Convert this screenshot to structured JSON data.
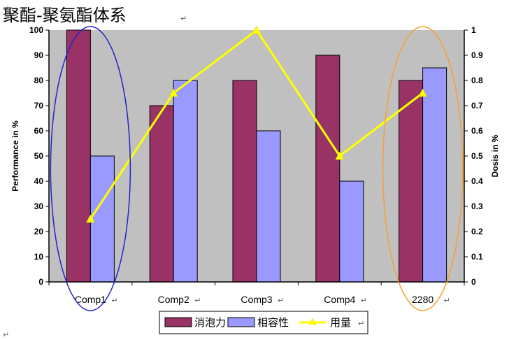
{
  "chart_data": {
    "type": "bar",
    "title": "聚酯-聚氨酯体系",
    "categories": [
      "Comp1",
      "Comp2",
      "Comp3",
      "Comp4",
      "2280"
    ],
    "series": [
      {
        "name": "消泡力",
        "kind": "bar",
        "axis": "left",
        "color": "#993366",
        "values": [
          100,
          70,
          80,
          90,
          80
        ]
      },
      {
        "name": "相容性",
        "kind": "bar",
        "axis": "left",
        "color": "#9999ff",
        "values": [
          50,
          80,
          60,
          40,
          85
        ]
      },
      {
        "name": "用量",
        "kind": "line",
        "axis": "right",
        "color": "#ffff00",
        "values": [
          0.25,
          0.75,
          1.0,
          0.5,
          0.75
        ]
      }
    ],
    "ylabel": "Performance in %",
    "y2label": "Dosis in %",
    "ylim": [
      0,
      100
    ],
    "y2lim": [
      0,
      1
    ],
    "yticks": [
      "0",
      "10",
      "20",
      "30",
      "40",
      "50",
      "60",
      "70",
      "80",
      "90",
      "100"
    ],
    "y2ticks": [
      "0",
      "0.1",
      "0.2",
      "0.3",
      "0.4",
      "0.5",
      "0.6",
      "0.7",
      "0.8",
      "0.9",
      "1"
    ],
    "plot_background": "#c0c0c0",
    "grid": false,
    "legend_position": "bottom",
    "highlight_ellipses": [
      {
        "category": "Comp1",
        "color": "#2222cc"
      },
      {
        "category": "2280",
        "color": "#f5a030"
      }
    ]
  },
  "paragraph_mark": "↵"
}
